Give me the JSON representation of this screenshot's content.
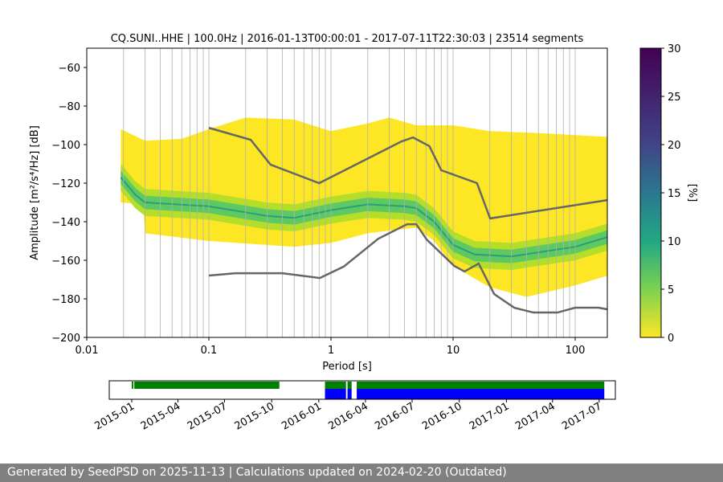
{
  "chart_data": {
    "type": "heatmap",
    "title": "CQ.SUNI..HHE | 100.0Hz | 2016-01-13T00:00:01 - 2017-07-11T22:30:03 | 23514 segments",
    "xlabel": "Period [s]",
    "ylabel": "Amplitude [m²/s⁴/Hz] [dB]",
    "xscale": "log",
    "xlim": [
      0.01,
      183
    ],
    "ylim": [
      -200,
      -50
    ],
    "xticks": [
      {
        "v": 0.01,
        "label": "0.01"
      },
      {
        "v": 0.1,
        "label": "0.1"
      },
      {
        "v": 1,
        "label": "1"
      },
      {
        "v": 10,
        "label": "10"
      },
      {
        "v": 100,
        "label": "100"
      }
    ],
    "yticks": [
      -200,
      -180,
      -160,
      -140,
      -120,
      -100,
      -80,
      -60
    ],
    "grid": "vertical",
    "density_envelope_upper": [
      [
        0.019,
        -92
      ],
      [
        0.03,
        -98
      ],
      [
        0.06,
        -97
      ],
      [
        0.1,
        -92
      ],
      [
        0.2,
        -86
      ],
      [
        0.5,
        -87
      ],
      [
        1,
        -93
      ],
      [
        2,
        -89
      ],
      [
        3,
        -86
      ],
      [
        5,
        -90
      ],
      [
        10,
        -90
      ],
      [
        20,
        -93
      ],
      [
        50,
        -94
      ],
      [
        183,
        -96
      ]
    ],
    "density_envelope_lower": [
      [
        0.019,
        -130
      ],
      [
        0.029,
        -131
      ],
      [
        0.03,
        -146
      ],
      [
        0.1,
        -150
      ],
      [
        0.5,
        -153
      ],
      [
        1,
        -151
      ],
      [
        2,
        -146
      ],
      [
        5,
        -143
      ],
      [
        7,
        -150
      ],
      [
        10,
        -163
      ],
      [
        20,
        -174
      ],
      [
        40,
        -179
      ],
      [
        100,
        -173
      ],
      [
        183,
        -168
      ]
    ],
    "density_mode": [
      [
        0.019,
        -117
      ],
      [
        0.025,
        -126
      ],
      [
        0.03,
        -130
      ],
      [
        0.1,
        -132
      ],
      [
        0.3,
        -137
      ],
      [
        0.5,
        -138
      ],
      [
        1,
        -134
      ],
      [
        2,
        -131
      ],
      [
        4,
        -132
      ],
      [
        5,
        -133
      ],
      [
        7,
        -140
      ],
      [
        10,
        -152
      ],
      [
        15,
        -157
      ],
      [
        30,
        -158
      ],
      [
        100,
        -153
      ],
      [
        183,
        -148
      ]
    ],
    "nhnm": [
      [
        0.1,
        -91.3
      ],
      [
        0.22,
        -97.5
      ],
      [
        0.32,
        -110.4
      ],
      [
        0.8,
        -120
      ],
      [
        3.8,
        -98.3
      ],
      [
        4.7,
        -96.3
      ],
      [
        6.4,
        -100.8
      ],
      [
        8,
        -113.3
      ],
      [
        15.7,
        -120
      ],
      [
        20.1,
        -138.3
      ],
      [
        183,
        -128.8
      ]
    ],
    "nlnm": [
      [
        0.1,
        -167.9
      ],
      [
        0.165,
        -166.7
      ],
      [
        0.4,
        -166.7
      ],
      [
        0.81,
        -169.2
      ],
      [
        1.27,
        -163.3
      ],
      [
        2.44,
        -148.8
      ],
      [
        4.2,
        -141.3
      ],
      [
        5,
        -141.3
      ],
      [
        6.07,
        -149.2
      ],
      [
        10.2,
        -162.9
      ],
      [
        12.4,
        -165.8
      ],
      [
        16.2,
        -161.7
      ],
      [
        21.7,
        -177.5
      ],
      [
        31.7,
        -184.6
      ],
      [
        45.5,
        -187.1
      ],
      [
        71.6,
        -187.1
      ],
      [
        100,
        -184.6
      ],
      [
        155,
        -184.6
      ],
      [
        183,
        -185.4
      ]
    ],
    "colorbar": {
      "label": "[%]",
      "range": [
        0,
        30
      ],
      "ticks": [
        0,
        5,
        10,
        15,
        20,
        25,
        30
      ]
    },
    "timeline": {
      "ticks": [
        "2015-01",
        "2015-04",
        "2015-07",
        "2015-10",
        "2016-01",
        "2016-04",
        "2016-07",
        "2016-10",
        "2017-01",
        "2017-04",
        "2017-07"
      ],
      "range": [
        "2014-11-15",
        "2017-08-25"
      ],
      "green": [
        [
          "2015-01-01",
          "2015-01-04"
        ],
        [
          "2015-01-06",
          "2015-10-16"
        ],
        [
          "2016-01-13",
          "2016-02-23"
        ],
        [
          "2016-02-26",
          "2016-03-05"
        ],
        [
          "2016-03-15",
          "2017-07-11"
        ]
      ],
      "blue": [
        [
          "2016-01-13",
          "2016-02-23"
        ],
        [
          "2016-02-26",
          "2016-03-05"
        ],
        [
          "2016-03-15",
          "2017-07-11"
        ]
      ]
    }
  },
  "footer": "Generated by SeedPSD on 2025-11-13 | Calculations updated on 2024-02-20 (Outdated)"
}
